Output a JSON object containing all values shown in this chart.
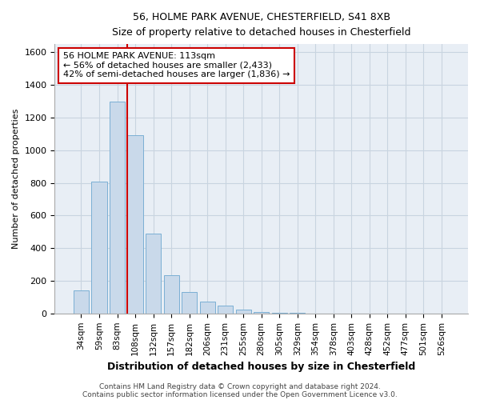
{
  "title1": "56, HOLME PARK AVENUE, CHESTERFIELD, S41 8XB",
  "title2": "Size of property relative to detached houses in Chesterfield",
  "xlabel": "Distribution of detached houses by size in Chesterfield",
  "ylabel": "Number of detached properties",
  "categories": [
    "34sqm",
    "59sqm",
    "83sqm",
    "108sqm",
    "132sqm",
    "157sqm",
    "182sqm",
    "206sqm",
    "231sqm",
    "255sqm",
    "280sqm",
    "305sqm",
    "329sqm",
    "354sqm",
    "378sqm",
    "403sqm",
    "428sqm",
    "452sqm",
    "477sqm",
    "501sqm",
    "526sqm"
  ],
  "values": [
    140,
    810,
    1300,
    1090,
    490,
    235,
    130,
    75,
    50,
    25,
    10,
    5,
    3,
    1,
    1,
    1,
    1,
    0,
    0,
    0,
    0
  ],
  "bar_color": "#c9d9ea",
  "bar_edge_color": "#7bafd4",
  "grid_color": "#c8d4e0",
  "background_color": "#e8eef5",
  "vline_x_index": 3,
  "vline_color": "#cc0000",
  "annotation_line1": "56 HOLME PARK AVENUE: 113sqm",
  "annotation_line2": "← 56% of detached houses are smaller (2,433)",
  "annotation_line3": "42% of semi-detached houses are larger (1,836) →",
  "annotation_box_color": "#cc0000",
  "footer1": "Contains HM Land Registry data © Crown copyright and database right 2024.",
  "footer2": "Contains public sector information licensed under the Open Government Licence v3.0.",
  "ylim": [
    0,
    1650
  ],
  "yticks": [
    0,
    200,
    400,
    600,
    800,
    1000,
    1200,
    1400,
    1600
  ]
}
